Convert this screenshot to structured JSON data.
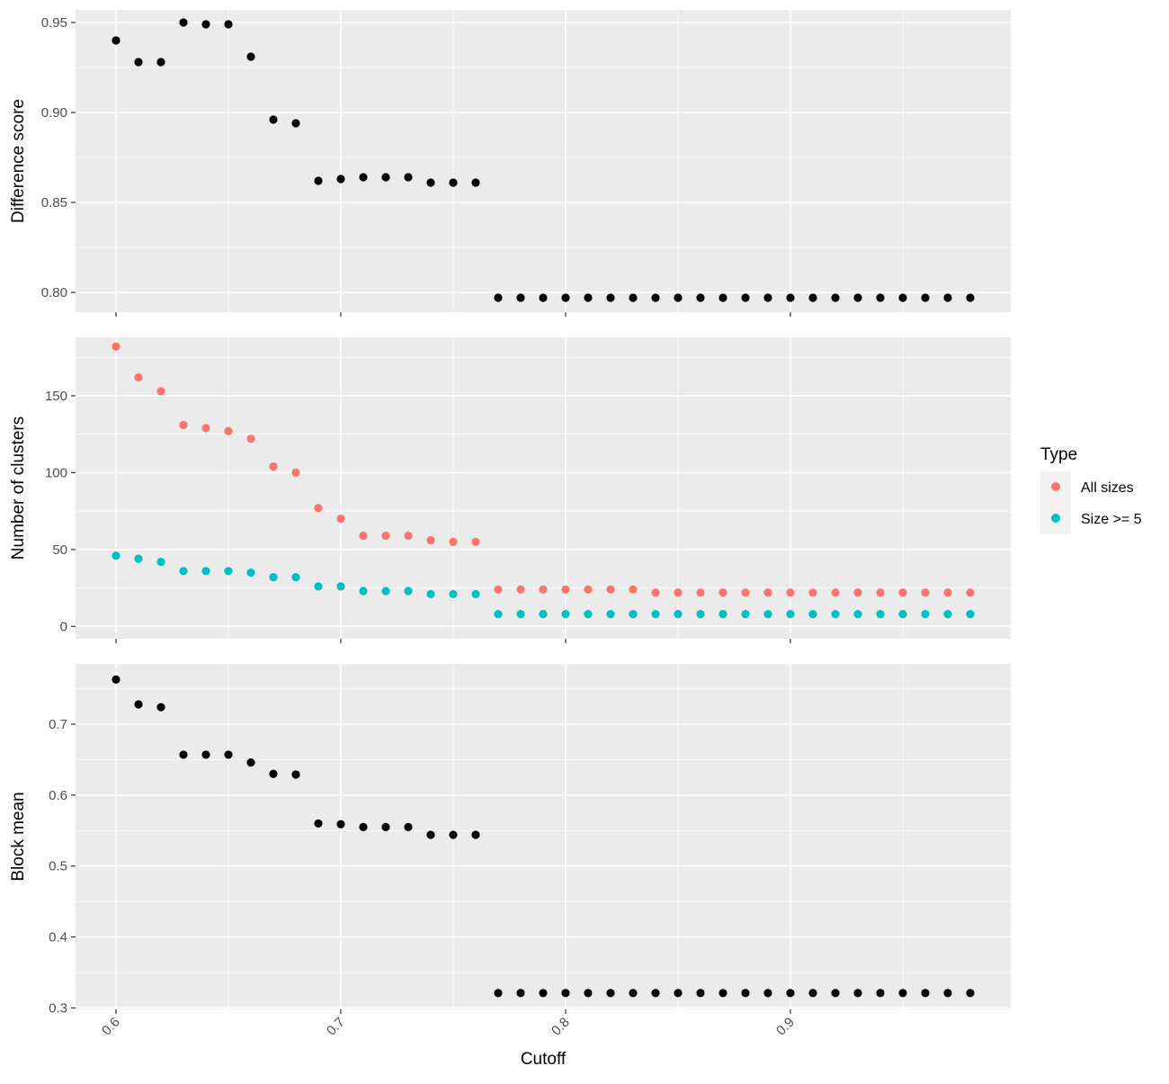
{
  "chart_data": [
    {
      "type": "scatter",
      "panel": "top",
      "ylabel": "Difference score",
      "xlim": [
        0.582,
        0.998
      ],
      "ylim": [
        0.789,
        0.957
      ],
      "yticks": [
        0.8,
        0.85,
        0.9,
        0.95
      ],
      "ytick_labels": [
        "0.80",
        "0.85",
        "0.90",
        "0.95"
      ],
      "grid": true,
      "x": [
        0.6,
        0.61,
        0.62,
        0.63,
        0.64,
        0.65,
        0.66,
        0.67,
        0.68,
        0.69,
        0.7,
        0.71,
        0.72,
        0.73,
        0.74,
        0.75,
        0.76,
        0.77,
        0.78,
        0.79,
        0.8,
        0.81,
        0.82,
        0.83,
        0.84,
        0.85,
        0.86,
        0.87,
        0.88,
        0.89,
        0.9,
        0.91,
        0.92,
        0.93,
        0.94,
        0.95,
        0.96,
        0.97,
        0.98
      ],
      "series": [
        {
          "color": "#000000",
          "values": [
            0.94,
            0.928,
            0.928,
            0.95,
            0.949,
            0.949,
            0.931,
            0.896,
            0.894,
            0.862,
            0.863,
            0.864,
            0.864,
            0.864,
            0.861,
            0.861,
            0.861,
            0.797,
            0.797,
            0.797,
            0.797,
            0.797,
            0.797,
            0.797,
            0.797,
            0.797,
            0.797,
            0.797,
            0.797,
            0.797,
            0.797,
            0.797,
            0.797,
            0.797,
            0.797,
            0.797,
            0.797,
            0.797,
            0.797
          ]
        }
      ]
    },
    {
      "type": "scatter",
      "panel": "middle",
      "ylabel": "Number of clusters",
      "xlim": [
        0.582,
        0.998
      ],
      "ylim": [
        -8,
        188
      ],
      "yticks": [
        0,
        50,
        100,
        150
      ],
      "ytick_labels": [
        "0",
        "50",
        "100",
        "150"
      ],
      "grid": true,
      "x": [
        0.6,
        0.61,
        0.62,
        0.63,
        0.64,
        0.65,
        0.66,
        0.67,
        0.68,
        0.69,
        0.7,
        0.71,
        0.72,
        0.73,
        0.74,
        0.75,
        0.76,
        0.77,
        0.78,
        0.79,
        0.8,
        0.81,
        0.82,
        0.83,
        0.84,
        0.85,
        0.86,
        0.87,
        0.88,
        0.89,
        0.9,
        0.91,
        0.92,
        0.93,
        0.94,
        0.95,
        0.96,
        0.97,
        0.98
      ],
      "series": [
        {
          "name": "All sizes",
          "color": "#F8766D",
          "values": [
            182,
            162,
            153,
            131,
            129,
            127,
            122,
            104,
            100,
            77,
            70,
            59,
            59,
            59,
            56,
            55,
            55,
            24,
            24,
            24,
            24,
            24,
            24,
            24,
            22,
            22,
            22,
            22,
            22,
            22,
            22,
            22,
            22,
            22,
            22,
            22,
            22,
            22,
            22
          ]
        },
        {
          "name": "Size >= 5",
          "color": "#00BFC4",
          "values": [
            46,
            44,
            42,
            36,
            36,
            36,
            35,
            32,
            32,
            26,
            26,
            23,
            23,
            23,
            21,
            21,
            21,
            8,
            8,
            8,
            8,
            8,
            8,
            8,
            8,
            8,
            8,
            8,
            8,
            8,
            8,
            8,
            8,
            8,
            8,
            8,
            8,
            8,
            8
          ]
        }
      ]
    },
    {
      "type": "scatter",
      "panel": "bottom",
      "ylabel": "Block mean",
      "xlabel": "Cutoff",
      "xlim": [
        0.582,
        0.998
      ],
      "ylim": [
        0.298,
        0.785
      ],
      "yticks": [
        0.3,
        0.4,
        0.5,
        0.6,
        0.7
      ],
      "ytick_labels": [
        "0.3",
        "0.4",
        "0.5",
        "0.6",
        "0.7"
      ],
      "xticks": [
        0.6,
        0.7,
        0.8,
        0.9
      ],
      "xtick_labels": [
        "0.6",
        "0.7",
        "0.8",
        "0.9"
      ],
      "grid": true,
      "x": [
        0.6,
        0.61,
        0.62,
        0.63,
        0.64,
        0.65,
        0.66,
        0.67,
        0.68,
        0.69,
        0.7,
        0.71,
        0.72,
        0.73,
        0.74,
        0.75,
        0.76,
        0.77,
        0.78,
        0.79,
        0.8,
        0.81,
        0.82,
        0.83,
        0.84,
        0.85,
        0.86,
        0.87,
        0.88,
        0.89,
        0.9,
        0.91,
        0.92,
        0.93,
        0.94,
        0.95,
        0.96,
        0.97,
        0.98
      ],
      "series": [
        {
          "color": "#000000",
          "values": [
            0.763,
            0.728,
            0.724,
            0.657,
            0.657,
            0.657,
            0.646,
            0.63,
            0.629,
            0.56,
            0.559,
            0.555,
            0.555,
            0.555,
            0.544,
            0.544,
            0.544,
            0.321,
            0.321,
            0.321,
            0.321,
            0.321,
            0.321,
            0.321,
            0.321,
            0.321,
            0.321,
            0.321,
            0.321,
            0.321,
            0.321,
            0.321,
            0.321,
            0.321,
            0.321,
            0.321,
            0.321,
            0.321,
            0.321
          ]
        }
      ]
    }
  ],
  "legend": {
    "title": "Type",
    "placement": "right",
    "items": [
      {
        "label": "All sizes",
        "color": "#F8766D"
      },
      {
        "label": "Size >= 5",
        "color": "#00BFC4"
      }
    ]
  },
  "style": {
    "panel_background": "#EBEBEB",
    "grid_color": "#FFFFFF",
    "tick_text_color": "#4D4D4D"
  }
}
